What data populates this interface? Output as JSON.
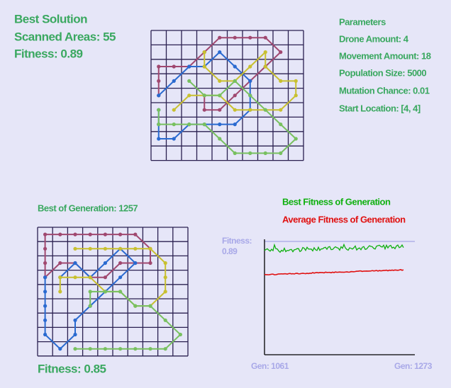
{
  "best_solution": {
    "title": "Best Solution",
    "scanned_areas": "Scanned Areas: 55",
    "fitness": "Fitness: 0.89"
  },
  "parameters": {
    "title": "Parameters",
    "items": [
      "Drone Amount: 4",
      "Movement Amount: 18",
      "Population Size: 5000",
      "Mutation Chance: 0.01",
      "Start Location: [4, 4]"
    ]
  },
  "generation": {
    "title": "Best of Generation: 1257",
    "fitness": "Fitness: 0.85"
  },
  "fitness_plot": {
    "legend": [
      "Best Fitness of Generation",
      "Average Fitness of Generation"
    ],
    "y_label": [
      "Fitness:",
      "0.89"
    ],
    "x_labels": [
      "Gen: 1061",
      "Gen: 1273"
    ]
  }
}
